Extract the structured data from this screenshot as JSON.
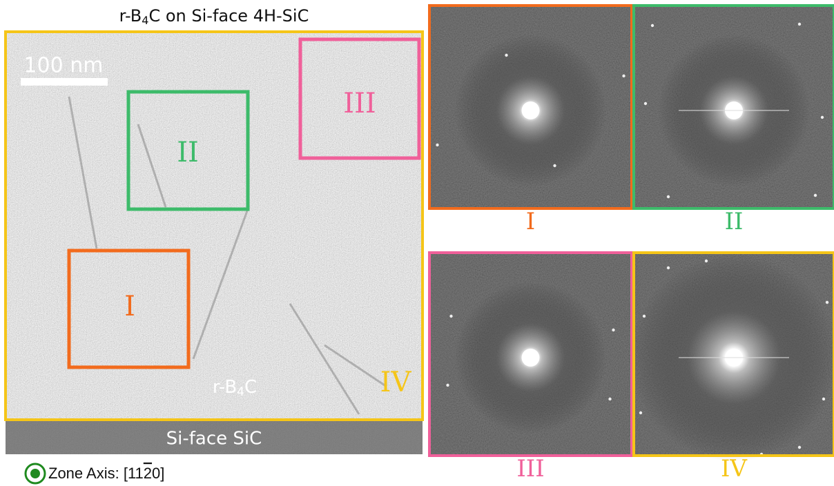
{
  "title": [
    "r-B",
    "4",
    "C on Si-face 4H-SiC"
  ],
  "scale_bar": "100 nm",
  "film_label": [
    "r-B",
    "4",
    "C"
  ],
  "substrate_label": "Si-face SiC",
  "regions": [
    "I",
    "II",
    "III",
    "IV"
  ],
  "zone_axis": [
    "Zone Axis: [11",
    "2",
    "0]"
  ]
}
